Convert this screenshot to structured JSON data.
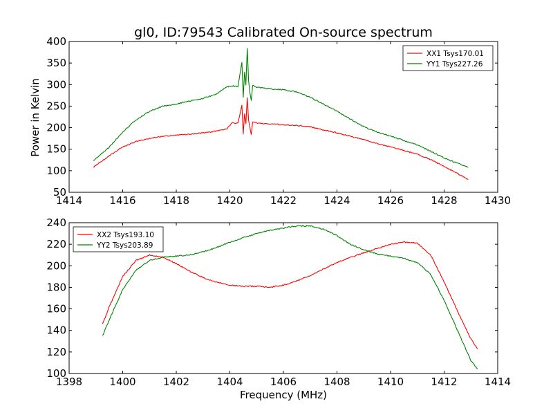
{
  "chart_data": [
    {
      "type": "line",
      "title": "gl0, ID:79543 Calibrated On-source spectrum",
      "xlabel": "",
      "ylabel": "Power in Kelvin",
      "xlim": [
        1414,
        1430
      ],
      "ylim": [
        50,
        400
      ],
      "xticks": [
        1414,
        1416,
        1418,
        1420,
        1422,
        1424,
        1426,
        1428,
        1430
      ],
      "yticks": [
        50,
        100,
        150,
        200,
        250,
        300,
        350,
        400
      ],
      "grid": false,
      "legend_position": "top-right",
      "series": [
        {
          "name": "XX1 Tsys170.01",
          "color": "#ff0000",
          "x": [
            1414.9,
            1415.5,
            1416.0,
            1416.5,
            1417.0,
            1417.5,
            1418.0,
            1418.5,
            1419.0,
            1419.5,
            1419.9,
            1420.1,
            1420.3,
            1420.45,
            1420.5,
            1420.55,
            1420.6,
            1420.65,
            1420.7,
            1420.75,
            1420.8,
            1420.85,
            1420.9,
            1421.0,
            1421.5,
            1422.0,
            1422.5,
            1423.0,
            1423.5,
            1424.0,
            1424.5,
            1425.0,
            1425.5,
            1426.0,
            1426.5,
            1427.0,
            1427.5,
            1428.0,
            1428.5,
            1428.9
          ],
          "y": [
            108,
            135,
            155,
            168,
            175,
            180,
            183,
            185,
            188,
            192,
            198,
            212,
            210,
            252,
            185,
            232,
            210,
            270,
            218,
            200,
            185,
            213,
            213,
            211,
            208,
            207,
            205,
            202,
            195,
            188,
            180,
            172,
            163,
            155,
            147,
            138,
            126,
            110,
            93,
            80
          ]
        },
        {
          "name": "YY1 Tsys227.26",
          "color": "#008000",
          "x": [
            1414.9,
            1415.5,
            1416.0,
            1416.5,
            1417.0,
            1417.5,
            1418.0,
            1418.5,
            1419.0,
            1419.5,
            1419.9,
            1420.1,
            1420.3,
            1420.45,
            1420.5,
            1420.55,
            1420.6,
            1420.65,
            1420.7,
            1420.75,
            1420.8,
            1420.85,
            1420.9,
            1421.0,
            1421.5,
            1422.0,
            1422.5,
            1423.0,
            1423.5,
            1424.0,
            1424.5,
            1425.0,
            1425.5,
            1426.0,
            1426.5,
            1427.0,
            1427.5,
            1428.0,
            1428.5,
            1428.9
          ],
          "y": [
            123,
            155,
            190,
            218,
            238,
            250,
            255,
            262,
            268,
            278,
            295,
            297,
            295,
            352,
            270,
            330,
            300,
            385,
            310,
            280,
            262,
            298,
            298,
            294,
            290,
            288,
            283,
            270,
            255,
            238,
            220,
            202,
            190,
            180,
            170,
            160,
            145,
            130,
            117,
            108
          ]
        }
      ]
    },
    {
      "type": "line",
      "title": "",
      "xlabel": "Frequency (MHz)",
      "ylabel": "",
      "xlim": [
        1398,
        1414
      ],
      "ylim": [
        100,
        240
      ],
      "xticks": [
        1398,
        1400,
        1402,
        1404,
        1406,
        1408,
        1410,
        1412,
        1414
      ],
      "yticks": [
        100,
        120,
        140,
        160,
        180,
        200,
        220,
        240
      ],
      "grid": false,
      "legend_position": "top-left",
      "series": [
        {
          "name": "XX2 Tsys193.10",
          "color": "#ff0000",
          "x": [
            1399.25,
            1399.5,
            1400.0,
            1400.5,
            1401.0,
            1401.5,
            1402.0,
            1402.5,
            1403.0,
            1403.5,
            1404.0,
            1404.5,
            1405.0,
            1405.5,
            1406.0,
            1406.5,
            1407.0,
            1407.5,
            1408.0,
            1408.5,
            1409.0,
            1409.5,
            1410.0,
            1410.5,
            1411.0,
            1411.5,
            1412.0,
            1412.5,
            1413.0,
            1413.25
          ],
          "y": [
            146,
            162,
            190,
            205,
            210,
            208,
            202,
            195,
            189,
            185,
            182,
            181,
            181,
            180,
            182,
            186,
            191,
            197,
            203,
            208,
            212,
            216,
            220,
            222,
            221,
            210,
            185,
            158,
            132,
            123
          ]
        },
        {
          "name": "YY2 Tsys203.89",
          "color": "#008000",
          "x": [
            1399.25,
            1399.5,
            1400.0,
            1400.5,
            1401.0,
            1401.5,
            1402.0,
            1402.5,
            1403.0,
            1403.5,
            1404.0,
            1404.5,
            1405.0,
            1405.5,
            1406.0,
            1406.5,
            1407.0,
            1407.5,
            1408.0,
            1408.5,
            1409.0,
            1409.5,
            1410.0,
            1410.5,
            1411.0,
            1411.5,
            1412.0,
            1412.5,
            1413.0,
            1413.25
          ],
          "y": [
            135,
            150,
            178,
            196,
            205,
            208,
            209,
            210,
            213,
            217,
            222,
            226,
            230,
            233,
            235,
            237,
            237,
            234,
            228,
            220,
            215,
            211,
            209,
            207,
            203,
            192,
            168,
            140,
            112,
            104
          ]
        }
      ]
    }
  ]
}
